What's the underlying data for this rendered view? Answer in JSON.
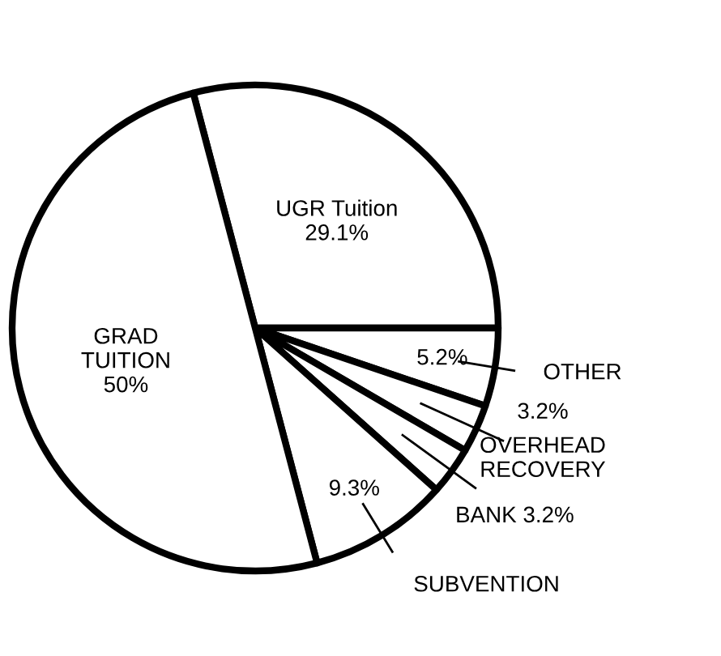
{
  "chart_data": {
    "type": "pie",
    "categories": [
      "UGR Tuition",
      "OTHER",
      "OVERHEAD\nRECOVERY",
      "BANK",
      "SUBVENTION",
      "GRAD\nTUITION"
    ],
    "values": [
      29.1,
      5.2,
      3.2,
      3.2,
      9.3,
      50
    ],
    "value_labels": [
      "29.1%",
      "5.2%",
      "3.2%",
      "3.2%",
      "9.3%",
      "50%"
    ],
    "colors": [
      "#ffffff",
      "#ffffff",
      "#ffffff",
      "#ffffff",
      "#ffffff",
      "#ffffff"
    ]
  }
}
